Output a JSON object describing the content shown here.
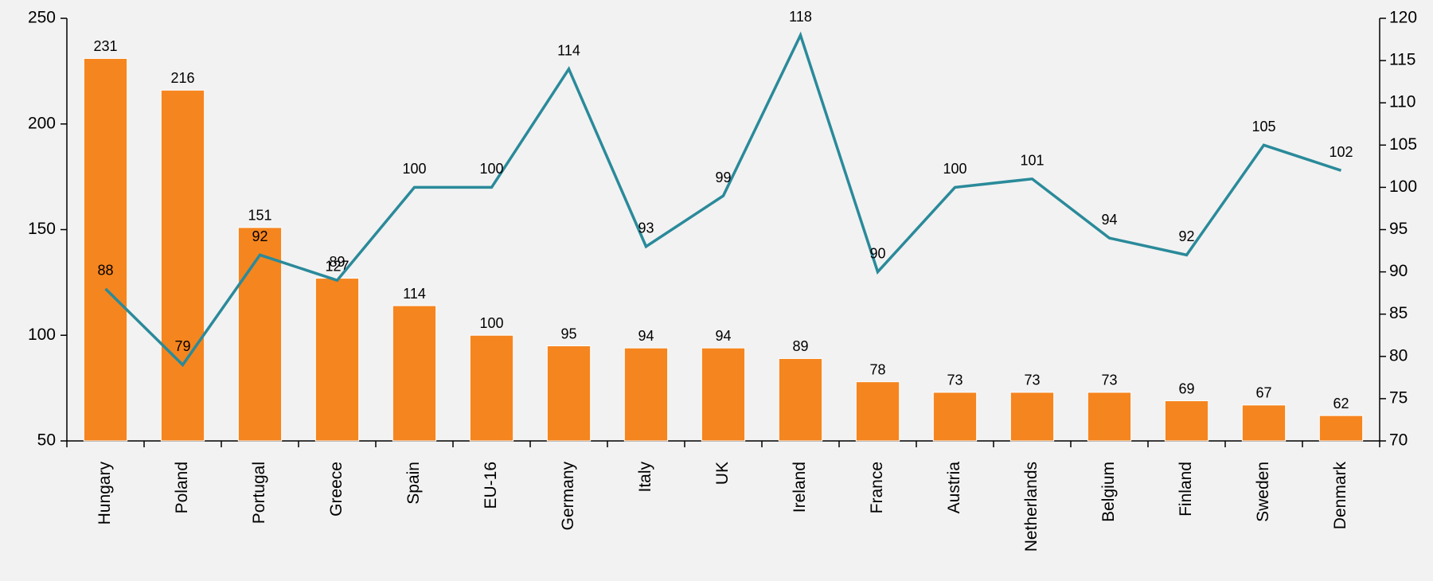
{
  "chart_data": {
    "type": "bar",
    "categories": [
      "Hungary",
      "Poland",
      "Portugal",
      "Greece",
      "Spain",
      "EU-16",
      "Germany",
      "Italy",
      "UK",
      "Ireland",
      "France",
      "Austria",
      "Netherlands",
      "Belgium",
      "Finland",
      "Sweden",
      "Denmark"
    ],
    "series": [
      {
        "color": "#f5851f",
        "values": [
          231,
          216,
          151,
          127,
          114,
          100,
          95,
          94,
          94,
          89,
          78,
          73,
          73,
          73,
          69,
          67,
          62
        ]
      },
      {
        "type": "line",
        "axis": "y2",
        "color": "#2a8a9a",
        "values": [
          88,
          79,
          92,
          89,
          100,
          100,
          114,
          93,
          99,
          118,
          90,
          100,
          101,
          94,
          92,
          105,
          102
        ]
      }
    ],
    "ylim": [
      50,
      250
    ],
    "yticks": [
      50,
      100,
      150,
      200,
      250
    ],
    "y2lim": [
      70,
      120
    ],
    "y2ticks": [
      70,
      75,
      80,
      85,
      90,
      95,
      100,
      105,
      110,
      115,
      120
    ]
  }
}
